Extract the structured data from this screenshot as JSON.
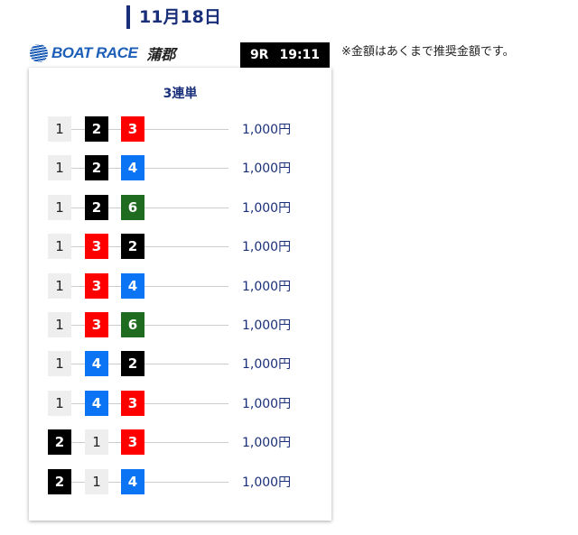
{
  "date": "11月18日",
  "logo": {
    "brand": "BOAT RACE",
    "venue": "蒲郡"
  },
  "race": {
    "number": "9R",
    "time": "19:11"
  },
  "note": "※金額はあくまで推奨金額です。",
  "bet_type": "3連単",
  "boat_colors": {
    "1": "#eeeeee",
    "2": "#000000",
    "3": "#ff0000",
    "4": "#0a74f5",
    "5": "#ffd400",
    "6": "#1f6b1f"
  },
  "bets": [
    {
      "combo": [
        "1",
        "2",
        "3"
      ],
      "amount": "1,000円"
    },
    {
      "combo": [
        "1",
        "2",
        "4"
      ],
      "amount": "1,000円"
    },
    {
      "combo": [
        "1",
        "2",
        "6"
      ],
      "amount": "1,000円"
    },
    {
      "combo": [
        "1",
        "3",
        "2"
      ],
      "amount": "1,000円"
    },
    {
      "combo": [
        "1",
        "3",
        "4"
      ],
      "amount": "1,000円"
    },
    {
      "combo": [
        "1",
        "3",
        "6"
      ],
      "amount": "1,000円"
    },
    {
      "combo": [
        "1",
        "4",
        "2"
      ],
      "amount": "1,000円"
    },
    {
      "combo": [
        "1",
        "4",
        "3"
      ],
      "amount": "1,000円"
    },
    {
      "combo": [
        "2",
        "1",
        "3"
      ],
      "amount": "1,000円"
    },
    {
      "combo": [
        "2",
        "1",
        "4"
      ],
      "amount": "1,000円"
    }
  ]
}
